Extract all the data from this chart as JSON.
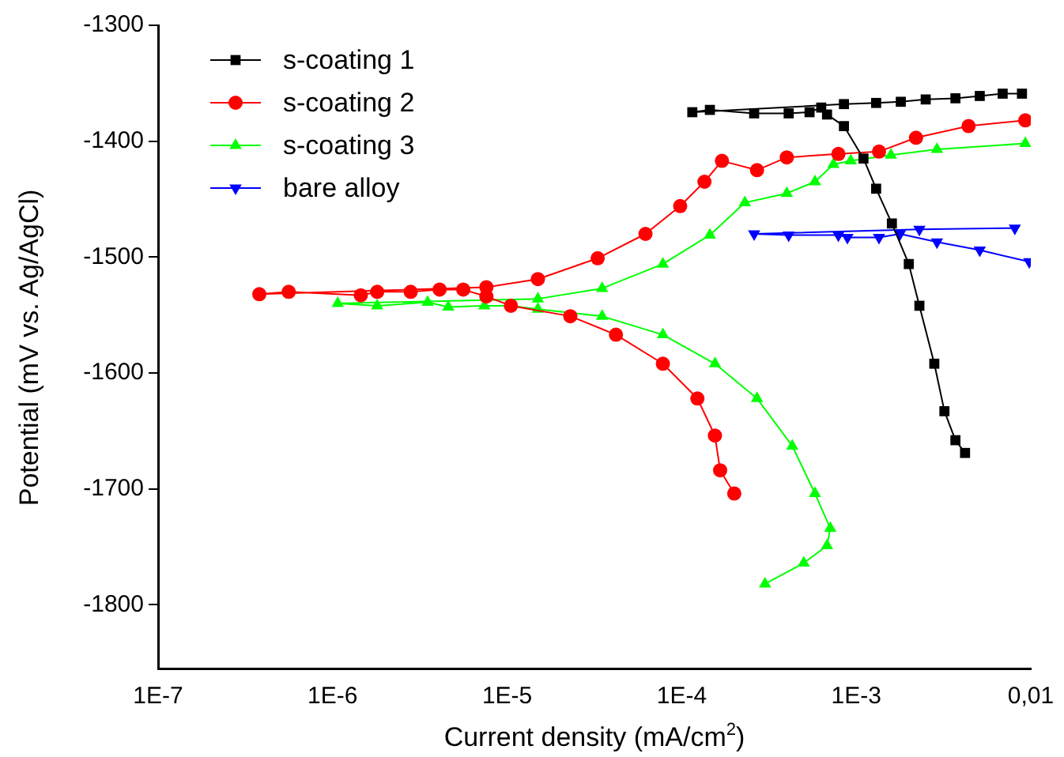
{
  "chart_data": {
    "type": "line",
    "xlabel": "Current density (mA/cm$^{2}$)",
    "ylabel": "Potential (mV vs. Ag/AgCl)",
    "log": "x",
    "xlim": [
      1e-07,
      0.01
    ],
    "xticks": [
      {
        "value": 1e-07,
        "label": "1E-7"
      },
      {
        "value": 1e-06,
        "label": "1E-6"
      },
      {
        "value": 1e-05,
        "label": "1E-5"
      },
      {
        "value": 0.0001,
        "label": "1E-4"
      },
      {
        "value": 0.001,
        "label": "1E-3"
      },
      {
        "value": 0.01,
        "label": "0,01"
      }
    ],
    "ylim": [
      -1855,
      -1300
    ],
    "yticks": [
      -1300,
      -1400,
      -1500,
      -1600,
      -1700,
      -1800
    ],
    "grid": false,
    "legend": "top left",
    "line_style": "solid",
    "series": [
      {
        "name": "s-coating 1",
        "color": "#000000",
        "marker": "square",
        "x": [
          0.0042,
          0.0037,
          0.0032,
          0.0028,
          0.0023,
          0.002,
          0.0016,
          0.0013,
          0.0011,
          0.00085,
          0.00068,
          0.00063,
          0.00054,
          0.00041,
          0.00026,
          0.000145,
          0.000115,
          0.00085,
          0.0013,
          0.0018,
          0.0025,
          0.0037,
          0.0051,
          0.0069,
          0.0089
        ],
        "values": [
          -1669,
          -1658,
          -1633,
          -1592,
          -1542,
          -1506,
          -1471,
          -1441,
          -1415,
          -1387,
          -1377,
          -1371,
          -1375,
          -1376,
          -1376,
          -1373,
          -1375,
          -1368,
          -1367,
          -1366,
          -1364,
          -1363,
          -1361,
          -1359,
          -1359
        ]
      },
      {
        "name": "s-coating 2",
        "color": "#ff0000",
        "marker": "circle",
        "x": [
          0.0002,
          0.000166,
          0.000155,
          0.000123,
          7.8e-05,
          4.2e-05,
          2.3e-05,
          1.05e-05,
          7.6e-06,
          5.6e-06,
          4.1e-06,
          2.8e-06,
          1.8e-06,
          1.45e-06,
          5.6e-07,
          3.8e-07,
          7.6e-06,
          1.5e-05,
          3.3e-05,
          6.2e-05,
          9.8e-05,
          0.000135,
          0.00017,
          0.00027,
          0.0004,
          0.00079,
          0.00135,
          0.0022,
          0.0044,
          0.0093
        ],
        "values": [
          -1704,
          -1684,
          -1654,
          -1622,
          -1592,
          -1567,
          -1551,
          -1542,
          -1534,
          -1528,
          -1528,
          -1530,
          -1530,
          -1533,
          -1530,
          -1532,
          -1526,
          -1519,
          -1501,
          -1480,
          -1456,
          -1435,
          -1417,
          -1425,
          -1414,
          -1411,
          -1409,
          -1397,
          -1387,
          -1382
        ]
      },
      {
        "name": "s-coating 3",
        "color": "#00ff00",
        "marker": "triangle",
        "x": [
          0.0003,
          0.0005,
          0.00068,
          0.00071,
          0.00058,
          0.00043,
          0.00027,
          0.000155,
          7.8e-05,
          3.5e-05,
          1.5e-05,
          1.05e-05,
          7.4e-06,
          4.6e-06,
          3.5e-06,
          1.8e-06,
          1.07e-06,
          1.5e-05,
          3.5e-05,
          7.8e-05,
          0.000145,
          0.00023,
          0.0004,
          0.00058,
          0.00074,
          0.00093,
          0.00158,
          0.0029,
          0.0093
        ],
        "values": [
          -1782,
          -1764,
          -1749,
          -1734,
          -1704,
          -1663,
          -1622,
          -1592,
          -1567,
          -1551,
          -1545,
          -1542,
          -1542,
          -1543,
          -1539,
          -1542,
          -1540,
          -1536,
          -1527,
          -1506,
          -1481,
          -1453,
          -1445,
          -1435,
          -1420,
          -1417,
          -1412,
          -1407,
          -1402
        ]
      },
      {
        "name": "bare alloy",
        "color": "#0000ff",
        "marker": "triangle-down",
        "x": [
          0.0098,
          0.0051,
          0.0029,
          0.00178,
          0.00135,
          0.00089,
          0.00079,
          0.00041,
          0.00026,
          0.0023,
          0.0081
        ],
        "values": [
          -1504,
          -1494,
          -1487,
          -1480,
          -1483,
          -1483,
          -1481,
          -1481,
          -1480,
          -1476,
          -1475
        ]
      }
    ]
  }
}
